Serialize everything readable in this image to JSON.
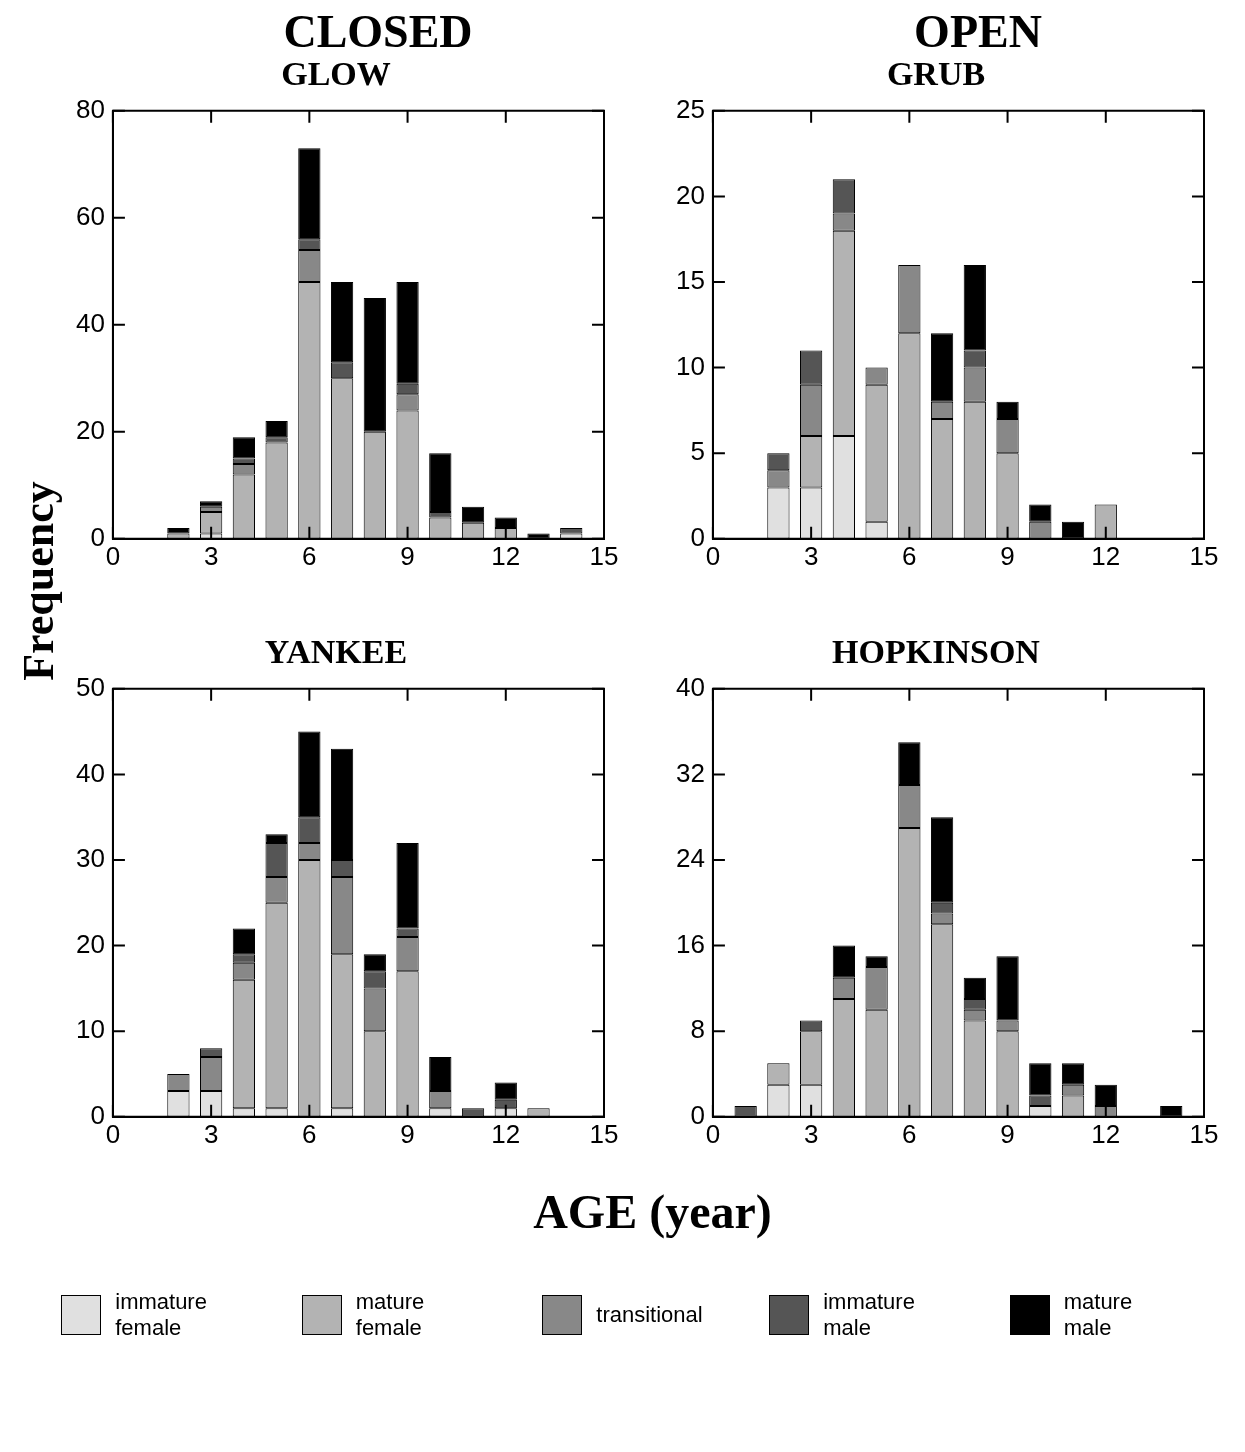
{
  "chart_data": [
    {
      "type": "bar",
      "title": "GLOW",
      "annotations": [
        "CLOSED"
      ],
      "ylabel": "Frequency",
      "stacked": true,
      "x": [
        1,
        2,
        3,
        4,
        5,
        6,
        7,
        8,
        9,
        10,
        11,
        12,
        13,
        14
      ],
      "xlim": [
        0,
        15
      ],
      "xticks": [
        0,
        3,
        6,
        9,
        12,
        15
      ],
      "ylim": [
        0,
        80
      ],
      "yticks": [
        0,
        20,
        40,
        60,
        80
      ],
      "series": [
        {
          "color": "#e0e0e0",
          "values": [
            0,
            0,
            1,
            0,
            0,
            0,
            0,
            0,
            0,
            0,
            0,
            0,
            0,
            1
          ]
        },
        {
          "color": "#b3b3b3",
          "values": [
            0,
            1,
            4,
            12,
            18,
            48,
            30,
            20,
            24,
            4,
            3,
            2,
            0,
            0
          ]
        },
        {
          "color": "#888888",
          "values": [
            0,
            0,
            1,
            2,
            0,
            6,
            0,
            0,
            3,
            0,
            0,
            0,
            0,
            0
          ]
        },
        {
          "color": "#555555",
          "values": [
            0,
            0,
            0,
            1,
            1,
            2,
            3,
            0,
            2,
            1,
            0,
            0,
            0,
            1
          ]
        },
        {
          "color": "#000000",
          "values": [
            0,
            1,
            1,
            4,
            3,
            17,
            15,
            25,
            19,
            11,
            3,
            2,
            1,
            0
          ]
        }
      ]
    },
    {
      "type": "bar",
      "title": "GRUB",
      "annotations": [
        "OPEN"
      ],
      "stacked": true,
      "legend": "bottom",
      "x": [
        1,
        2,
        3,
        4,
        5,
        6,
        7,
        8,
        9,
        10,
        11,
        12,
        13,
        14
      ],
      "xlim": [
        0,
        15
      ],
      "xticks": [
        0,
        3,
        6,
        9,
        12,
        15
      ],
      "ylim": [
        0,
        25
      ],
      "yticks": [
        0,
        5,
        10,
        15,
        20,
        25
      ],
      "series": [
        {
          "name": "immature female",
          "color": "#e0e0e0",
          "values": [
            0,
            3,
            3,
            6,
            1,
            0,
            0,
            0,
            0,
            0,
            0,
            0,
            0,
            0
          ]
        },
        {
          "name": "mature female",
          "color": "#b3b3b3",
          "values": [
            0,
            0,
            3,
            12,
            8,
            12,
            7,
            8,
            5,
            0,
            0,
            2,
            0,
            0
          ]
        },
        {
          "name": "transitional",
          "color": "#888888",
          "values": [
            0,
            1,
            3,
            1,
            1,
            4,
            1,
            2,
            2,
            1,
            0,
            0,
            0,
            0
          ]
        },
        {
          "name": "immature male",
          "color": "#555555",
          "values": [
            0,
            1,
            2,
            2,
            0,
            0,
            0,
            1,
            0,
            0,
            0,
            0,
            0,
            0
          ]
        },
        {
          "name": "mature male",
          "color": "#000000",
          "values": [
            0,
            0,
            0,
            0,
            0,
            0,
            4,
            5,
            1,
            1,
            1,
            0,
            0,
            0
          ]
        }
      ]
    },
    {
      "type": "bar",
      "title": "YANKEE",
      "xlabel": "AGE (year)",
      "stacked": true,
      "x": [
        1,
        2,
        3,
        4,
        5,
        6,
        7,
        8,
        9,
        10,
        11,
        12,
        13,
        14
      ],
      "xlim": [
        0,
        15
      ],
      "xticks": [
        0,
        3,
        6,
        9,
        12,
        15
      ],
      "ylim": [
        0,
        50
      ],
      "yticks": [
        0,
        10,
        20,
        30,
        40,
        50
      ],
      "series": [
        {
          "color": "#e0e0e0",
          "values": [
            0,
            3,
            3,
            1,
            1,
            0,
            1,
            0,
            0,
            1,
            0,
            1,
            0,
            0
          ]
        },
        {
          "color": "#b3b3b3",
          "values": [
            0,
            0,
            0,
            15,
            24,
            30,
            18,
            10,
            17,
            0,
            0,
            0,
            1,
            0
          ]
        },
        {
          "color": "#888888",
          "values": [
            0,
            2,
            4,
            2,
            3,
            2,
            9,
            5,
            4,
            2,
            0,
            0,
            0,
            0
          ]
        },
        {
          "color": "#555555",
          "values": [
            0,
            0,
            1,
            1,
            4,
            3,
            2,
            2,
            1,
            0,
            1,
            1,
            0,
            0
          ]
        },
        {
          "color": "#000000",
          "values": [
            0,
            0,
            0,
            3,
            1,
            10,
            13,
            2,
            10,
            4,
            0,
            2,
            0,
            0
          ]
        }
      ]
    },
    {
      "type": "bar",
      "title": "HOPKINSON",
      "stacked": true,
      "x": [
        1,
        2,
        3,
        4,
        5,
        6,
        7,
        8,
        9,
        10,
        11,
        12,
        13,
        14
      ],
      "xlim": [
        0,
        15
      ],
      "xticks": [
        0,
        3,
        6,
        9,
        12,
        15
      ],
      "ylim": [
        0,
        40
      ],
      "yticks": [
        0,
        8,
        16,
        24,
        32,
        40
      ],
      "series": [
        {
          "color": "#e0e0e0",
          "values": [
            0,
            3,
            3,
            0,
            0,
            0,
            0,
            0,
            0,
            1,
            0,
            0,
            0,
            0
          ]
        },
        {
          "color": "#b3b3b3",
          "values": [
            0,
            2,
            5,
            11,
            10,
            27,
            18,
            9,
            8,
            0,
            2,
            0,
            0,
            0
          ]
        },
        {
          "color": "#888888",
          "values": [
            0,
            0,
            0,
            2,
            4,
            4,
            1,
            1,
            1,
            0,
            1,
            1,
            0,
            0
          ]
        },
        {
          "color": "#555555",
          "values": [
            1,
            0,
            1,
            0,
            0,
            0,
            1,
            1,
            0,
            1,
            0,
            0,
            0,
            0
          ]
        },
        {
          "color": "#000000",
          "values": [
            0,
            0,
            0,
            3,
            1,
            4,
            8,
            2,
            6,
            3,
            2,
            2,
            0,
            1
          ]
        }
      ]
    }
  ]
}
